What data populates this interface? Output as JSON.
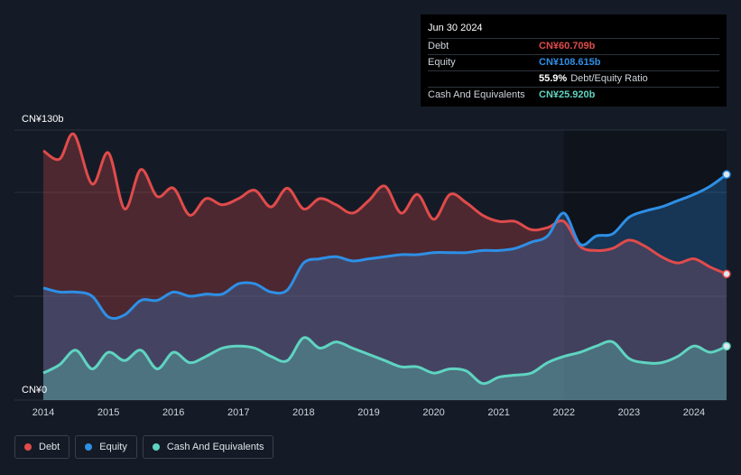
{
  "chart_data": {
    "type": "area",
    "ylim": [
      0,
      130
    ],
    "y_tick_labels": [
      "CN¥130b",
      "CN¥0"
    ],
    "x_tick_labels": [
      "2014",
      "2015",
      "2016",
      "2017",
      "2018",
      "2019",
      "2020",
      "2021",
      "2022",
      "2023",
      "2024"
    ],
    "x_range": [
      2014.0,
      2024.5
    ],
    "series": [
      {
        "name": "Debt",
        "color": "#e04b4b",
        "points": [
          [
            2014.0,
            120
          ],
          [
            2014.25,
            116
          ],
          [
            2014.47,
            128
          ],
          [
            2014.75,
            104
          ],
          [
            2015.0,
            119
          ],
          [
            2015.25,
            92
          ],
          [
            2015.5,
            111
          ],
          [
            2015.75,
            98
          ],
          [
            2016.0,
            102
          ],
          [
            2016.25,
            89
          ],
          [
            2016.5,
            97
          ],
          [
            2016.75,
            94
          ],
          [
            2017.0,
            97
          ],
          [
            2017.25,
            101
          ],
          [
            2017.5,
            93
          ],
          [
            2017.75,
            102
          ],
          [
            2018.0,
            92
          ],
          [
            2018.25,
            97
          ],
          [
            2018.5,
            94
          ],
          [
            2018.75,
            90
          ],
          [
            2019.0,
            96
          ],
          [
            2019.25,
            103
          ],
          [
            2019.5,
            90
          ],
          [
            2019.75,
            99
          ],
          [
            2020.0,
            87
          ],
          [
            2020.25,
            99
          ],
          [
            2020.5,
            95
          ],
          [
            2020.75,
            89
          ],
          [
            2021.0,
            86
          ],
          [
            2021.25,
            86
          ],
          [
            2021.5,
            82
          ],
          [
            2021.75,
            83
          ],
          [
            2022.0,
            86
          ],
          [
            2022.25,
            74
          ],
          [
            2022.5,
            72
          ],
          [
            2022.75,
            73
          ],
          [
            2023.0,
            77
          ],
          [
            2023.25,
            74
          ],
          [
            2023.5,
            69
          ],
          [
            2023.75,
            66
          ],
          [
            2024.0,
            68
          ],
          [
            2024.25,
            64
          ],
          [
            2024.5,
            60.709
          ]
        ]
      },
      {
        "name": "Equity",
        "color": "#2e8fe6",
        "points": [
          [
            2014.0,
            54
          ],
          [
            2014.25,
            52
          ],
          [
            2014.5,
            52
          ],
          [
            2014.75,
            50
          ],
          [
            2015.0,
            40
          ],
          [
            2015.25,
            41
          ],
          [
            2015.5,
            48
          ],
          [
            2015.75,
            48
          ],
          [
            2016.0,
            52
          ],
          [
            2016.25,
            50
          ],
          [
            2016.5,
            51
          ],
          [
            2016.75,
            51
          ],
          [
            2017.0,
            56
          ],
          [
            2017.25,
            56
          ],
          [
            2017.5,
            52
          ],
          [
            2017.75,
            53
          ],
          [
            2018.0,
            66
          ],
          [
            2018.25,
            68
          ],
          [
            2018.5,
            69
          ],
          [
            2018.75,
            67
          ],
          [
            2019.0,
            68
          ],
          [
            2019.25,
            69
          ],
          [
            2019.5,
            70
          ],
          [
            2019.75,
            70
          ],
          [
            2020.0,
            71
          ],
          [
            2020.25,
            71
          ],
          [
            2020.5,
            71
          ],
          [
            2020.75,
            72
          ],
          [
            2021.0,
            72
          ],
          [
            2021.25,
            73
          ],
          [
            2021.5,
            76
          ],
          [
            2021.75,
            79
          ],
          [
            2022.0,
            90
          ],
          [
            2022.25,
            75
          ],
          [
            2022.5,
            79
          ],
          [
            2022.75,
            80
          ],
          [
            2023.0,
            88
          ],
          [
            2023.25,
            91
          ],
          [
            2023.5,
            93
          ],
          [
            2023.75,
            96
          ],
          [
            2024.0,
            99
          ],
          [
            2024.25,
            103
          ],
          [
            2024.5,
            108.615
          ]
        ]
      },
      {
        "name": "Cash And Equivalents",
        "color": "#5fd4c1",
        "points": [
          [
            2014.0,
            13
          ],
          [
            2014.25,
            17
          ],
          [
            2014.5,
            24
          ],
          [
            2014.75,
            15
          ],
          [
            2015.0,
            23
          ],
          [
            2015.25,
            19
          ],
          [
            2015.5,
            24
          ],
          [
            2015.75,
            15
          ],
          [
            2016.0,
            23
          ],
          [
            2016.25,
            18
          ],
          [
            2016.5,
            21
          ],
          [
            2016.75,
            25
          ],
          [
            2017.0,
            26
          ],
          [
            2017.25,
            25
          ],
          [
            2017.5,
            21
          ],
          [
            2017.75,
            19
          ],
          [
            2018.0,
            30
          ],
          [
            2018.25,
            25
          ],
          [
            2018.5,
            28
          ],
          [
            2018.75,
            25
          ],
          [
            2019.0,
            22
          ],
          [
            2019.25,
            19
          ],
          [
            2019.5,
            16
          ],
          [
            2019.75,
            16
          ],
          [
            2020.0,
            13
          ],
          [
            2020.25,
            15
          ],
          [
            2020.5,
            14
          ],
          [
            2020.75,
            8
          ],
          [
            2021.0,
            11
          ],
          [
            2021.25,
            12
          ],
          [
            2021.5,
            13
          ],
          [
            2021.75,
            18
          ],
          [
            2022.0,
            21
          ],
          [
            2022.25,
            23
          ],
          [
            2022.5,
            26
          ],
          [
            2022.75,
            28
          ],
          [
            2023.0,
            20
          ],
          [
            2023.25,
            18
          ],
          [
            2023.5,
            18
          ],
          [
            2023.75,
            21
          ],
          [
            2024.0,
            26
          ],
          [
            2024.25,
            23
          ],
          [
            2024.5,
            25.92
          ]
        ]
      }
    ]
  },
  "tooltip": {
    "date": "Jun 30 2024",
    "debt_label": "Debt",
    "debt_value": "CN¥60.709b",
    "equity_label": "Equity",
    "equity_value": "CN¥108.615b",
    "ratio_value": "55.9%",
    "ratio_label": "Debt/Equity Ratio",
    "cash_label": "Cash And Equivalents",
    "cash_value": "CN¥25.920b"
  },
  "legend": {
    "debt": "Debt",
    "equity": "Equity",
    "cash": "Cash And Equivalents"
  },
  "colors": {
    "debt": "#e04b4b",
    "equity": "#2e8fe6",
    "cash": "#5fd4c1",
    "background": "#151b26"
  }
}
